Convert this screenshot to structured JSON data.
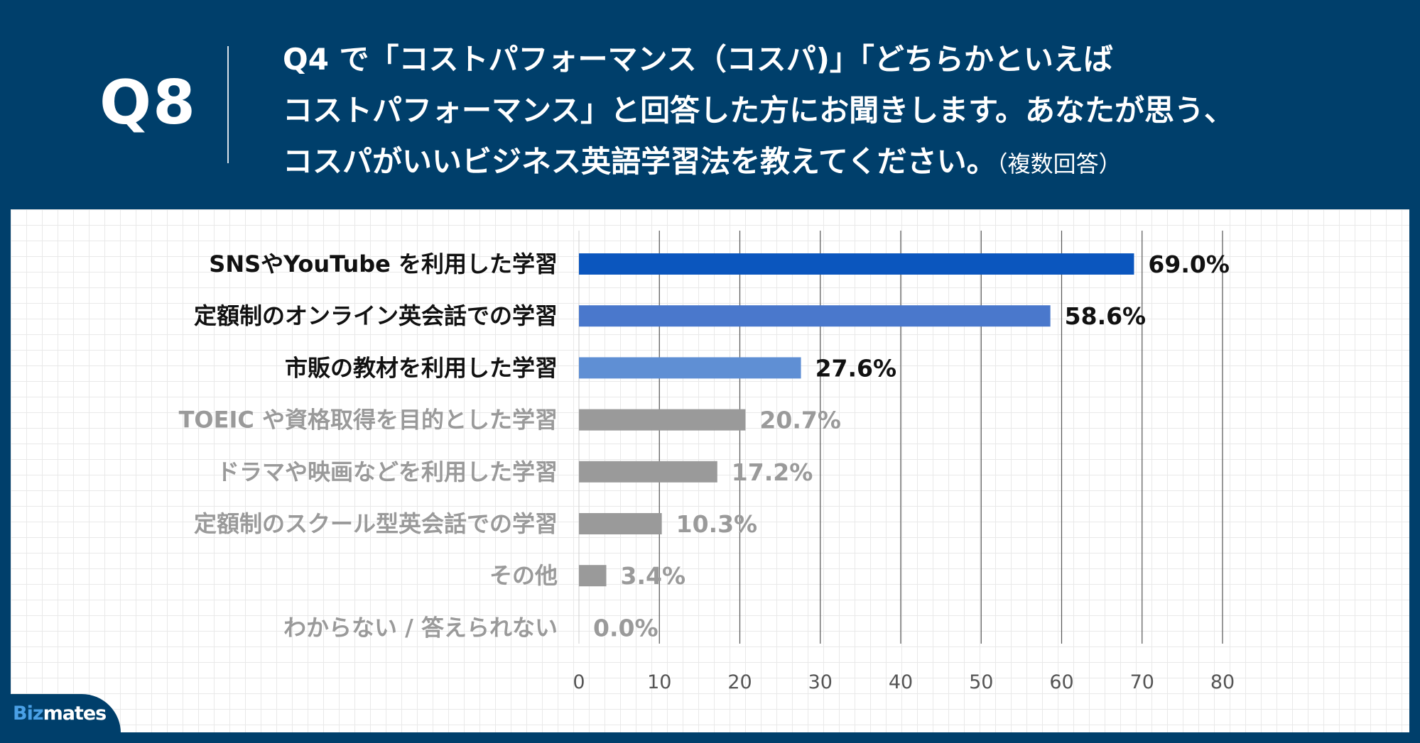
{
  "header": {
    "qnum": "Q8",
    "line1": "Q4 で「コストパフォーマンス（コスパ)」「どちらかといえば",
    "line2": "コストパフォーマンス」と回答した方にお聞きします。あなたが思う、",
    "line3": "コスパがいいビジネス英語学習法を教えてください。",
    "line3_note": "（複数回答）"
  },
  "logo": {
    "part1": "Biz",
    "part2": "mates"
  },
  "chart_data": {
    "type": "bar",
    "orientation": "horizontal",
    "categories": [
      "SNSやYouTube を利用した学習",
      "定額制のオンライン英会話での学習",
      "市販の教材を利用した学習",
      "TOEIC や資格取得を目的とした学習",
      "ドラマや映画などを利用した学習",
      "定額制のスクール型英会話での学習",
      "その他",
      "わからない / 答えられない"
    ],
    "values": [
      69.0,
      58.6,
      27.6,
      20.7,
      17.2,
      10.3,
      3.4,
      0.0
    ],
    "value_labels": [
      "69.0%",
      "58.6%",
      "27.6%",
      "20.7%",
      "17.2%",
      "10.3%",
      "3.4%",
      "0.0%"
    ],
    "bar_colors": [
      "#0b56be",
      "#4a78cc",
      "#5f8fd4",
      "#9a9a9a",
      "#9a9a9a",
      "#9a9a9a",
      "#9a9a9a",
      "#9a9a9a"
    ],
    "label_colors": [
      "#111111",
      "#111111",
      "#111111",
      "#9a9a9a",
      "#9a9a9a",
      "#9a9a9a",
      "#9a9a9a",
      "#9a9a9a"
    ],
    "xlim": [
      0,
      80
    ],
    "xticks": [
      0,
      10,
      20,
      30,
      40,
      50,
      60,
      70,
      80
    ],
    "grid": true
  }
}
